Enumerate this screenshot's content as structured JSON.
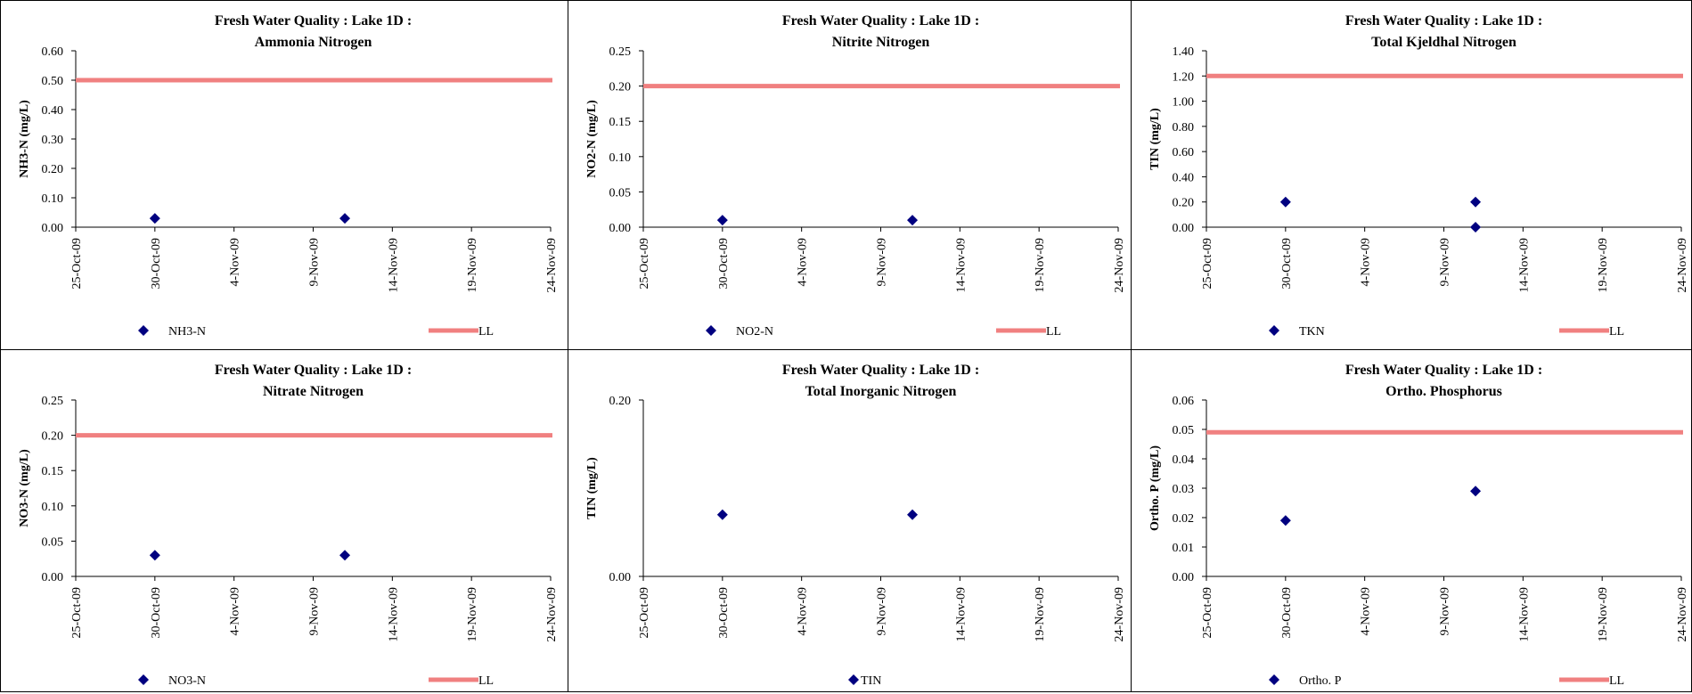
{
  "chart_data": [
    {
      "type": "scatter",
      "title": "Fresh Water Quality : Lake 1D :",
      "subtitle": "Ammonia Nitrogen",
      "ylabel": "NH3-N (mg/L)",
      "xlabel": "",
      "xlim": [
        "25-Oct-09",
        "24-Nov-09"
      ],
      "x_ticks": [
        "25-Oct-09",
        "30-Oct-09",
        "4-Nov-09",
        "9-Nov-09",
        "14-Nov-09",
        "19-Nov-09",
        "24-Nov-09"
      ],
      "ylim": [
        0,
        0.6
      ],
      "y_ticks": [
        "0.00",
        "0.10",
        "0.20",
        "0.30",
        "0.40",
        "0.50",
        "0.60"
      ],
      "series": [
        {
          "name": "NH3-N",
          "marker": "diamond",
          "color": "#000080",
          "points": [
            {
              "x": "30-Oct-09",
              "y": 0.03
            },
            {
              "x": "11-Nov-09",
              "y": 0.03
            }
          ]
        },
        {
          "name": "LL",
          "kind": "line",
          "color": "#F08080",
          "y": 0.5
        }
      ],
      "legend_position": "bottom"
    },
    {
      "type": "scatter",
      "title": "Fresh Water Quality : Lake 1D :",
      "subtitle": "Nitrite Nitrogen",
      "ylabel": "NO2-N (mg/L)",
      "xlabel": "",
      "xlim": [
        "25-Oct-09",
        "24-Nov-09"
      ],
      "x_ticks": [
        "25-Oct-09",
        "30-Oct-09",
        "4-Nov-09",
        "9-Nov-09",
        "14-Nov-09",
        "19-Nov-09",
        "24-Nov-09"
      ],
      "ylim": [
        0,
        0.25
      ],
      "y_ticks": [
        "0.00",
        "0.05",
        "0.10",
        "0.15",
        "0.20",
        "0.25"
      ],
      "series": [
        {
          "name": "NO2-N",
          "marker": "diamond",
          "color": "#000080",
          "points": [
            {
              "x": "30-Oct-09",
              "y": 0.01
            },
            {
              "x": "11-Nov-09",
              "y": 0.01
            }
          ]
        },
        {
          "name": "LL",
          "kind": "line",
          "color": "#F08080",
          "y": 0.2
        }
      ],
      "legend_position": "bottom"
    },
    {
      "type": "scatter",
      "title": "Fresh Water Quality : Lake 1D :",
      "subtitle": "Total Kjeldhal Nitrogen",
      "ylabel": "TIN (mg/L)",
      "xlabel": "",
      "xlim": [
        "25-Oct-09",
        "24-Nov-09"
      ],
      "x_ticks": [
        "25-Oct-09",
        "30-Oct-09",
        "4-Nov-09",
        "9-Nov-09",
        "14-Nov-09",
        "19-Nov-09",
        "24-Nov-09"
      ],
      "ylim": [
        0,
        1.4
      ],
      "y_ticks": [
        "0.00",
        "0.20",
        "0.40",
        "0.60",
        "0.80",
        "1.00",
        "1.20",
        "1.40"
      ],
      "series": [
        {
          "name": "TKN",
          "marker": "diamond",
          "color": "#000080",
          "points": [
            {
              "x": "30-Oct-09",
              "y": 0.2
            },
            {
              "x": "11-Nov-09",
              "y": 0.2
            },
            {
              "x": "11-Nov-09",
              "y": 0.0
            }
          ]
        },
        {
          "name": "LL",
          "kind": "line",
          "color": "#F08080",
          "y": 1.2
        }
      ],
      "legend_position": "bottom"
    },
    {
      "type": "scatter",
      "title": "Fresh Water Quality : Lake 1D :",
      "subtitle": "Nitrate Nitrogen",
      "ylabel": "NO3-N (mg/L)",
      "xlabel": "",
      "xlim": [
        "25-Oct-09",
        "24-Nov-09"
      ],
      "x_ticks": [
        "25-Oct-09",
        "30-Oct-09",
        "4-Nov-09",
        "9-Nov-09",
        "14-Nov-09",
        "19-Nov-09",
        "24-Nov-09"
      ],
      "ylim": [
        0,
        0.25
      ],
      "y_ticks": [
        "0.00",
        "0.05",
        "0.10",
        "0.15",
        "0.20",
        "0.25"
      ],
      "series": [
        {
          "name": "NO3-N",
          "marker": "diamond",
          "color": "#000080",
          "points": [
            {
              "x": "30-Oct-09",
              "y": 0.03
            },
            {
              "x": "11-Nov-09",
              "y": 0.03
            }
          ]
        },
        {
          "name": "LL",
          "kind": "line",
          "color": "#F08080",
          "y": 0.2
        }
      ],
      "legend_position": "bottom"
    },
    {
      "type": "scatter",
      "title": "Fresh Water Quality : Lake 1D :",
      "subtitle": "Total Inorganic Nitrogen",
      "ylabel": "TIN (mg/L)",
      "xlabel": "",
      "xlim": [
        "25-Oct-09",
        "24-Nov-09"
      ],
      "x_ticks": [
        "25-Oct-09",
        "30-Oct-09",
        "4-Nov-09",
        "9-Nov-09",
        "14-Nov-09",
        "19-Nov-09",
        "24-Nov-09"
      ],
      "ylim": [
        0,
        0.2
      ],
      "y_ticks": [
        "0.00",
        "0.20"
      ],
      "series": [
        {
          "name": "TIN",
          "marker": "diamond",
          "color": "#000080",
          "points": [
            {
              "x": "30-Oct-09",
              "y": 0.07
            },
            {
              "x": "11-Nov-09",
              "y": 0.07
            }
          ]
        }
      ],
      "legend_position": "bottom"
    },
    {
      "type": "scatter",
      "title": "Fresh Water Quality : Lake 1D :",
      "subtitle": "Ortho. Phosphorus",
      "ylabel": "Ortho. P (mg/L)",
      "xlabel": "",
      "xlim": [
        "25-Oct-09",
        "24-Nov-09"
      ],
      "x_ticks": [
        "25-Oct-09",
        "30-Oct-09",
        "4-Nov-09",
        "9-Nov-09",
        "14-Nov-09",
        "19-Nov-09",
        "24-Nov-09"
      ],
      "ylim": [
        0,
        0.06
      ],
      "y_ticks": [
        "0.00",
        "0.01",
        "0.02",
        "0.03",
        "0.04",
        "0.05",
        "0.06"
      ],
      "series": [
        {
          "name": "Ortho. P",
          "marker": "diamond",
          "color": "#000080",
          "points": [
            {
              "x": "30-Oct-09",
              "y": 0.019
            },
            {
              "x": "11-Nov-09",
              "y": 0.029
            }
          ]
        },
        {
          "name": "LL",
          "kind": "line",
          "color": "#F08080",
          "y": 0.049
        }
      ],
      "legend_position": "bottom"
    }
  ]
}
